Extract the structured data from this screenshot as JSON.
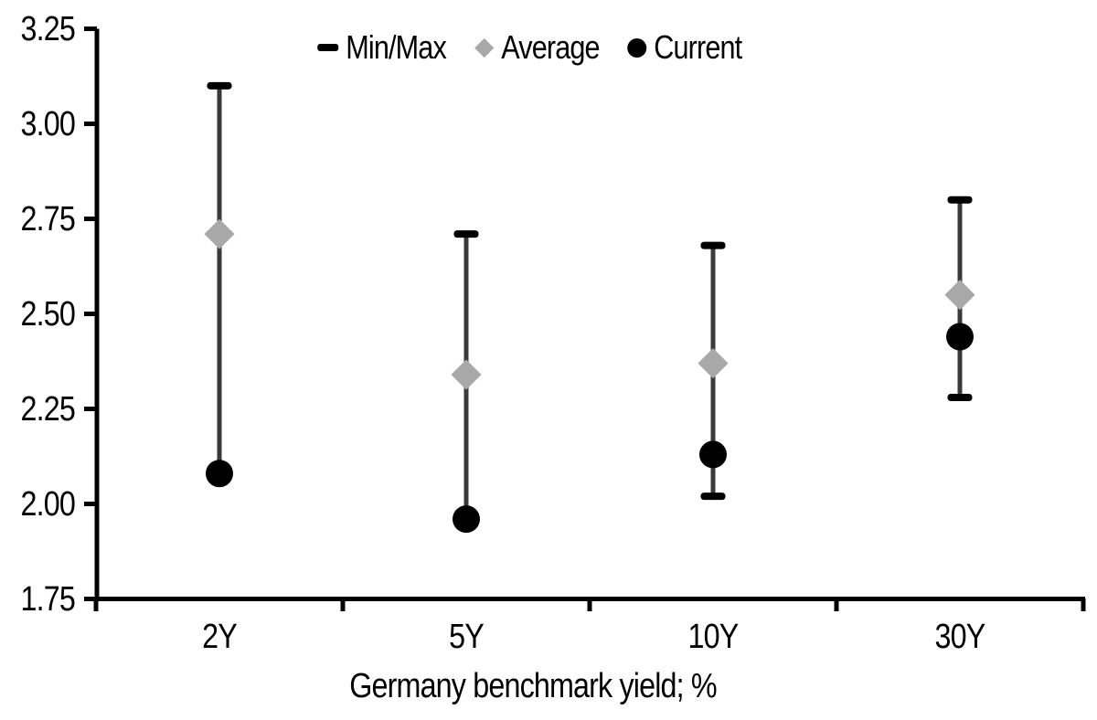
{
  "chart_data": {
    "type": "scatter",
    "title": "",
    "xlabel": "Germany benchmark yield; %",
    "categories": [
      "2Y",
      "5Y",
      "10Y",
      "30Y"
    ],
    "series": [
      {
        "name": "Min/Max",
        "marker": "range-bar",
        "max": [
          3.1,
          2.71,
          2.68,
          2.8
        ],
        "min": [
          2.08,
          1.96,
          2.02,
          2.28
        ]
      },
      {
        "name": "Average",
        "marker": "diamond",
        "values": [
          2.71,
          2.34,
          2.37,
          2.55
        ]
      },
      {
        "name": "Current",
        "marker": "circle",
        "values": [
          2.08,
          1.96,
          2.13,
          2.44
        ]
      }
    ],
    "ylim": [
      1.75,
      3.25
    ],
    "ytick_step": 0.25,
    "ytick_labels": [
      "3.25",
      "3.00",
      "2.75",
      "2.50",
      "2.25",
      "2.00",
      "1.75"
    ],
    "grid": false,
    "legend_position": "top-center",
    "colors": {
      "current": "#000000",
      "average": "#a8a8a8",
      "range_line": "#3a3a3a",
      "axis": "#000000"
    }
  }
}
